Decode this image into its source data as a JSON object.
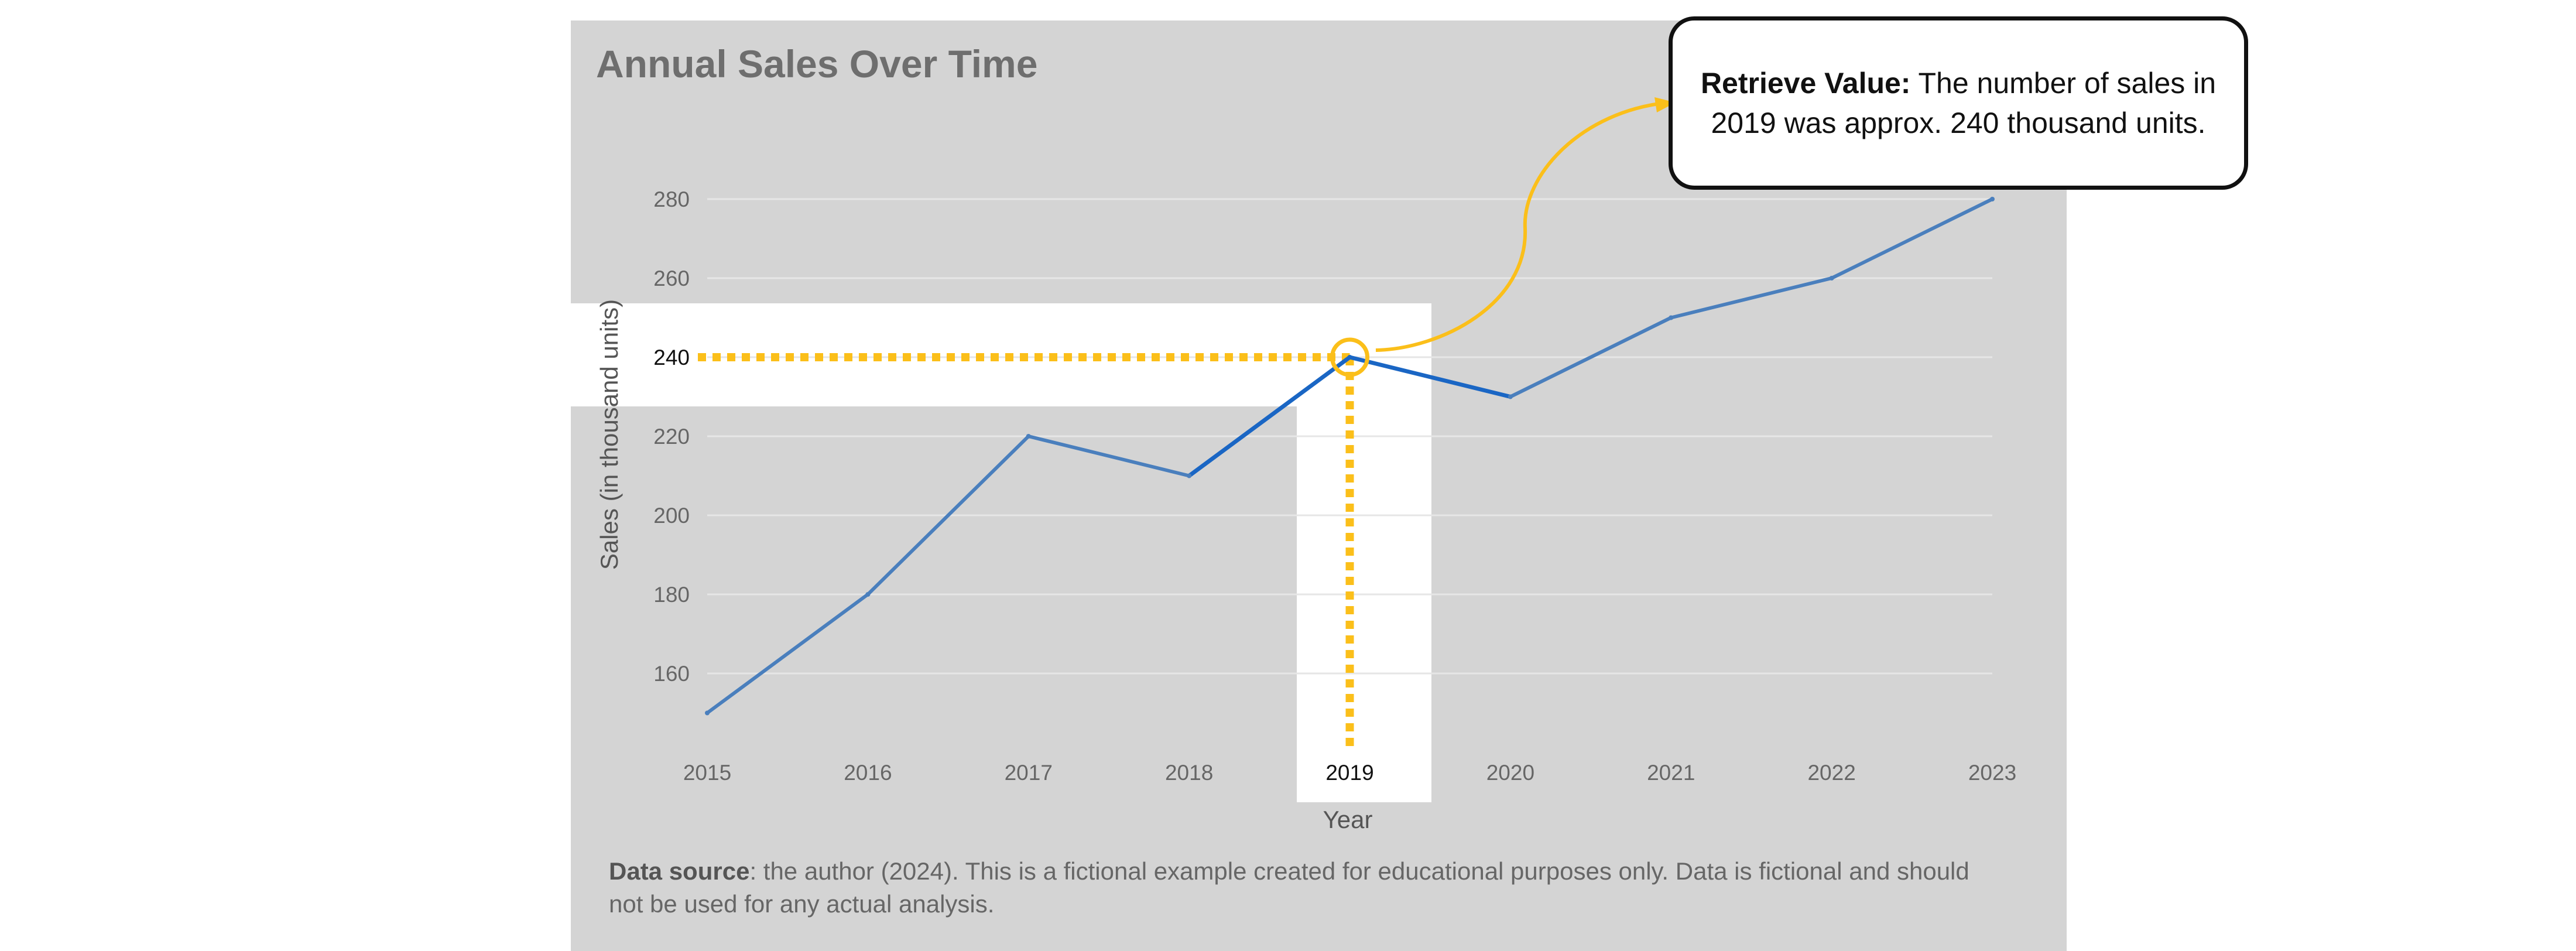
{
  "chart_data": {
    "type": "line",
    "title": "Annual Sales Over Time",
    "xlabel": "Year",
    "ylabel": "Sales (in thousand units)",
    "x": [
      "2015",
      "2016",
      "2017",
      "2018",
      "2019",
      "2020",
      "2021",
      "2022",
      "2023"
    ],
    "series": [
      {
        "values": [
          150,
          180,
          220,
          210,
          240,
          230,
          250,
          260,
          280
        ]
      }
    ],
    "yticks": [
      160,
      180,
      200,
      220,
      240,
      260,
      280
    ],
    "ylim": [
      140,
      290
    ],
    "grid": true,
    "legend": "none",
    "highlight": {
      "x": "2019",
      "y": 240
    },
    "colors": {
      "line": "#4a7fbd",
      "highlight_line": "#1a66c4",
      "annotation": "#fbbf1a",
      "background": "#d4d4d4"
    }
  },
  "annotation": {
    "label": "Retrieve Value:",
    "text": "The number of sales in 2019 was approx. 240 thousand units."
  },
  "footnote": {
    "label": "Data source",
    "text": ": the author (2024). This is a fictional example created for educational purposes only. Data is fictional and should not be used for any actual analysis."
  }
}
